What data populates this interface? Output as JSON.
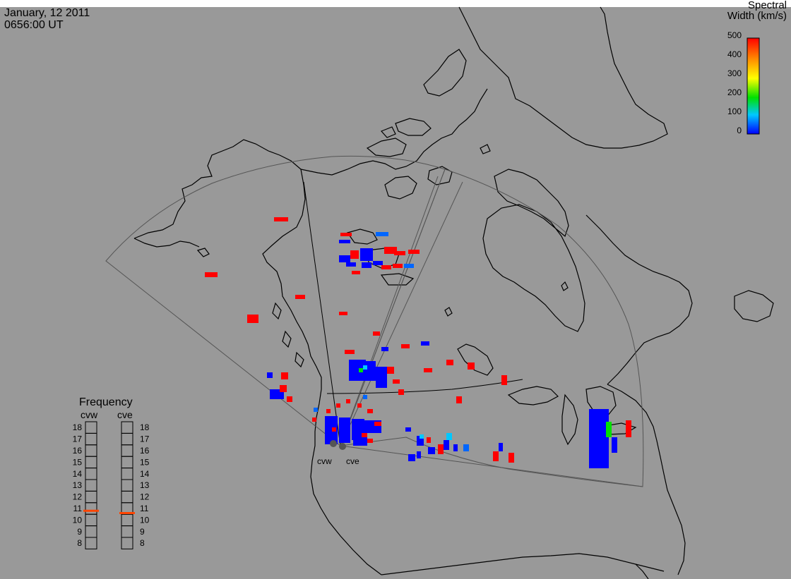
{
  "header": {
    "date": "January, 12 2011",
    "time": "0656:00 UT"
  },
  "colorbar": {
    "title_line1": "Spectral",
    "title_line2": "Width (km/s)",
    "ticks": [
      "500",
      "400",
      "300",
      "200",
      "100",
      "0"
    ],
    "range": [
      0,
      500
    ],
    "colors": [
      "#0000ff",
      "#00c8ff",
      "#00e000",
      "#ffff00",
      "#ff8c00",
      "#ff0000"
    ]
  },
  "frequency_panel": {
    "title": "Frequency",
    "radars": [
      {
        "name": "cvw",
        "value_mhz": 10.8,
        "marker_color": "#ff4500"
      },
      {
        "name": "cve",
        "value_mhz": 10.6,
        "marker_color": "#ff4500"
      }
    ],
    "scale_labels": [
      "18",
      "17",
      "16",
      "15",
      "14",
      "13",
      "12",
      "11",
      "10",
      "9",
      "8"
    ]
  },
  "radar_site_labels": [
    "cvw",
    "cve"
  ],
  "map_colors": {
    "background": "#999999",
    "coastline": "#000000",
    "fov_outline": "#555555",
    "scatter_low": "#0000ff",
    "scatter_mid": "#00e000",
    "scatter_cyan": "#00c8ff",
    "scatter_high": "#ff0000"
  }
}
